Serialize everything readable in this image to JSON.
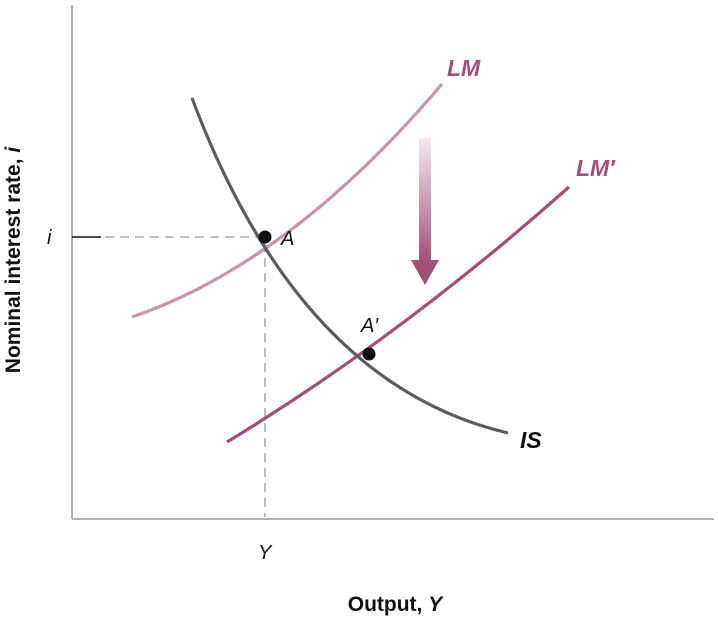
{
  "diagram": {
    "y_axis_title_prefix": "Nominal interest rate, ",
    "y_axis_title_var": "i",
    "x_axis_title_prefix": "Output, ",
    "x_axis_title_var": "Y",
    "y_tick_label": "i",
    "x_tick_label": "Y",
    "curves": {
      "lm": "LM",
      "lm_shifted": "LM′",
      "is": "IS"
    },
    "points": {
      "a": "A",
      "a_prime": "A′"
    },
    "colors": {
      "lm": "#c993ad",
      "lm_shifted": "#a24f7a",
      "is": "#5d5d5d",
      "axis": "#9a9a9a",
      "guide": "#999999",
      "arrow_dark": "#a24f7a",
      "arrow_light": "#f6eaf0",
      "point": "#111111"
    },
    "arrow_direction": "down"
  }
}
